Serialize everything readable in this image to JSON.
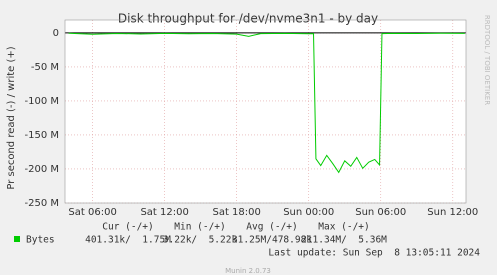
{
  "chart_data": {
    "type": "line",
    "title": "Disk throughput for /dev/nvme3n1 - by day",
    "y_label": "Pr second read (-) / write (+)",
    "watermark": "RRDTOOL / TOBI OETIKER",
    "x": [
      4,
      6,
      8,
      10,
      12,
      14,
      16,
      18,
      19,
      20,
      22,
      24,
      24.4,
      24.6,
      25,
      25.5,
      26,
      26.5,
      27,
      27.5,
      28,
      28.5,
      29,
      29.5,
      29.9,
      30.1,
      31,
      33,
      35,
      37
    ],
    "series": [
      {
        "name": "Bytes",
        "color": "#00cc00",
        "values": [
          -500000,
          -2000000,
          -800000,
          -1500000,
          -600000,
          -1200000,
          -900000,
          -1800000,
          -5000000,
          -1000000,
          -700000,
          -1300000,
          -1000000,
          -185000000,
          -195000000,
          -180000000,
          -192000000,
          -205000000,
          -188000000,
          -196000000,
          -183000000,
          -199000000,
          -190000000,
          -186000000,
          -194000000,
          -1000000,
          -600000,
          -900000,
          -500000,
          -700000
        ]
      }
    ],
    "xlim": [
      3.7,
      37.1
    ],
    "xticks": [
      {
        "value": 6,
        "label": "Sat 06:00"
      },
      {
        "value": 12,
        "label": "Sat 12:00"
      },
      {
        "value": 18,
        "label": "Sat 18:00"
      },
      {
        "value": 24,
        "label": "Sun 00:00"
      },
      {
        "value": 30,
        "label": "Sun 06:00"
      },
      {
        "value": 36,
        "label": "Sun 12:00"
      }
    ],
    "ylim": [
      -250000000,
      19000000
    ],
    "yticks": [
      0,
      {
        "value": -50000000,
        "label": "-50 M"
      },
      {
        "value": -100000000,
        "label": "-100 M"
      },
      {
        "value": -150000000,
        "label": "-150 M"
      },
      {
        "value": -200000000,
        "label": "-200 M"
      },
      {
        "value": -250000000,
        "label": "-250 M"
      }
    ],
    "grid": true,
    "stats": {
      "columns": [
        "Cur (-/+)",
        "Min (-/+)",
        "Avg (-/+)",
        "Max (-/+)"
      ],
      "cells": [
        "401.31k/  1.75M",
        "3.22k/  5.22k",
        "31.25M/478.98k",
        "211.34M/  5.36M"
      ]
    },
    "last_update": "Last update: Sun Sep  8 13:05:11 2024",
    "footer": "Munin 2.0.73"
  }
}
